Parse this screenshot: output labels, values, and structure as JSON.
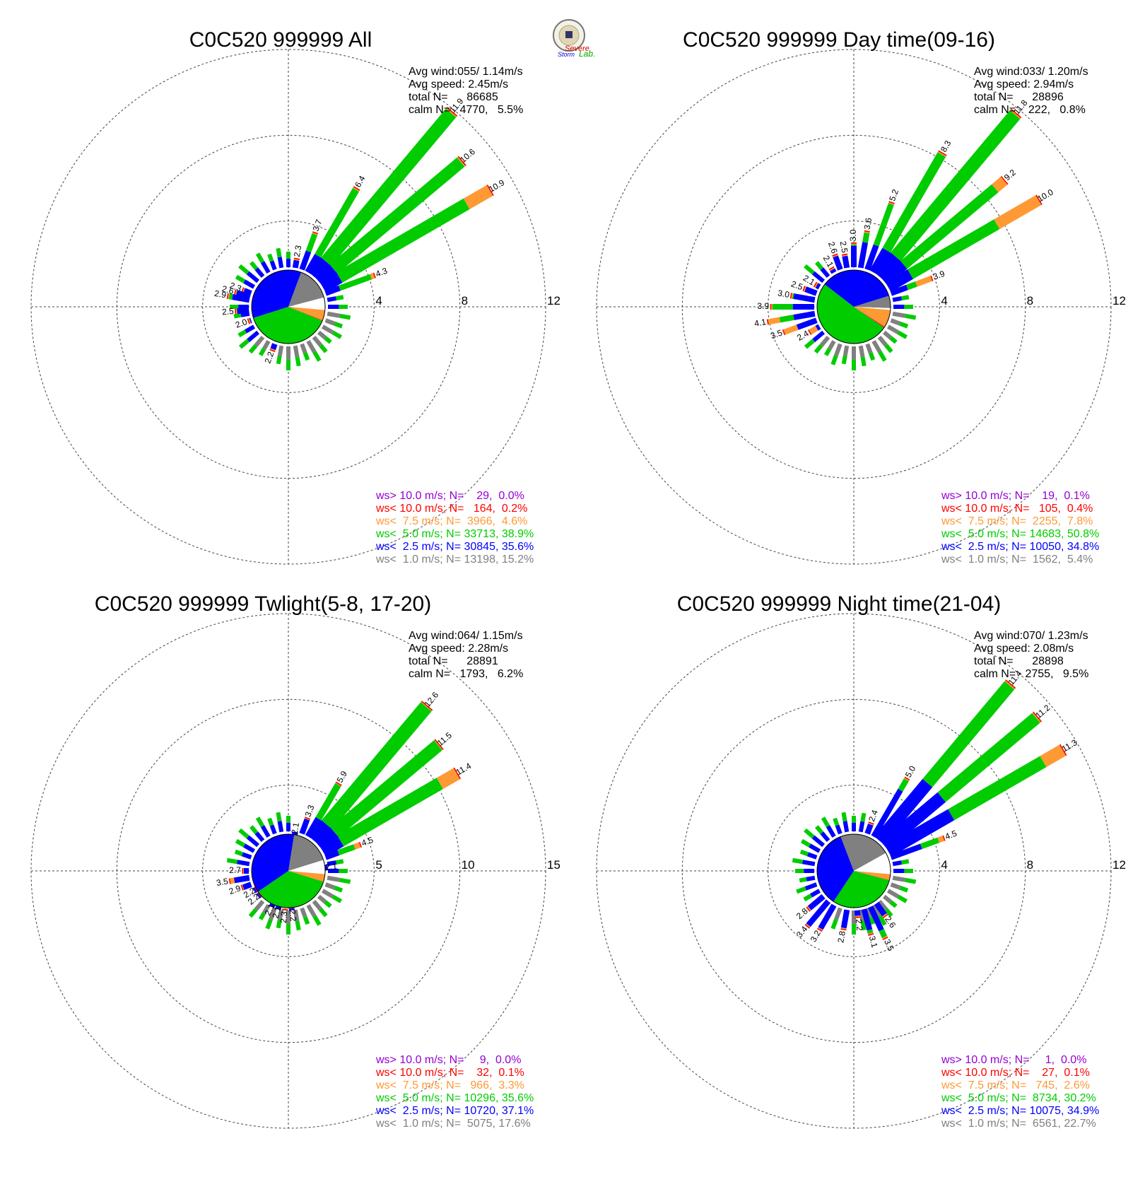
{
  "logo": {
    "text_top": "Severe",
    "text_mid": "Storm",
    "text_lab": "Lab."
  },
  "colors": {
    "gt10": "#9400D3",
    "lt10": "#FF0000",
    "lt75": "#FF9933",
    "lt5": "#00CC00",
    "lt25": "#0000FF",
    "lt1": "#808080",
    "calm": "#FFFFFF"
  },
  "chart_data": [
    {
      "type": "wind-rose",
      "title": "C0C520 999999 All",
      "info": [
        "Avg wind:055/ 1.14m/s",
        "Avg speed: 2.45m/s",
        "total N=      86685",
        "calm N=   4770,   5.5%"
      ],
      "ring_values": [
        4,
        8,
        12
      ],
      "ring_labels": [
        "4",
        "8",
        "12"
      ],
      "legend": [
        {
          "key": "gt10",
          "text": "ws> 10.0 m/s; N=    29,  0.0%"
        },
        {
          "key": "lt10",
          "text": "ws< 10.0 m/s; N=   164,  0.2%"
        },
        {
          "key": "lt75",
          "text": "ws<  7.5 m/s; N=  3966,  4.6%"
        },
        {
          "key": "lt5",
          "text": "ws<  5.0 m/s; N= 33713, 38.9%"
        },
        {
          "key": "lt25",
          "text": "ws<  2.5 m/s; N= 30845, 35.6%"
        },
        {
          "key": "lt1",
          "text": "ws<  1.0 m/s; N= 13198, 15.2%"
        }
      ],
      "pie": {
        "lt1": 15.2,
        "lt25": 35.6,
        "lt5": 38.9,
        "lt75": 4.6,
        "lt10": 0.2,
        "gt10": 0.0,
        "calm": 5.5
      },
      "bars": [
        {
          "dir": 40,
          "total": 11.9,
          "label": "11.9",
          "blue": 0.9
        },
        {
          "dir": 50,
          "total": 10.6,
          "label": "10.6",
          "blue": 0.9
        },
        {
          "dir": 60,
          "total": 10.9,
          "label": "10.9",
          "blue": 0.9,
          "orange": 1.3
        },
        {
          "dir": 30,
          "total": 6.4,
          "label": "6.4",
          "blue": 0.9
        },
        {
          "dir": 70,
          "total": 4.3,
          "label": "4.3",
          "blue": 0.7,
          "orange": 0.2
        },
        {
          "dir": 20,
          "total": 3.7,
          "label": "3.7",
          "blue": 0.9
        },
        {
          "dir": 10,
          "total": 2.3,
          "label": "2.3",
          "blue": 0.9
        },
        {
          "dir": 290,
          "total": 2.3,
          "label": "2.3",
          "blue": 0.8
        },
        {
          "dir": 285,
          "total": 2.6,
          "label": "2.6",
          "blue": 0.8
        },
        {
          "dir": 280,
          "total": 2.9,
          "label": "2.9",
          "blue": 0.8
        },
        {
          "dir": 265,
          "total": 2.5,
          "label": "2.5",
          "blue": 0.8
        },
        {
          "dir": 250,
          "total": 2.0,
          "label": "2.0",
          "blue": 0.8
        },
        {
          "dir": 200,
          "total": 2.2,
          "label": "2.2",
          "blue": 0.9
        }
      ]
    },
    {
      "type": "wind-rose",
      "title": "C0C520 999999 Day time(09-16)",
      "info": [
        "Avg wind:033/ 1.20m/s",
        "Avg speed: 2.94m/s",
        "total N=      28896",
        "calm N=    222,   0.8%"
      ],
      "ring_values": [
        4,
        8,
        12
      ],
      "ring_labels": [
        "4",
        "8",
        "12"
      ],
      "legend": [
        {
          "key": "gt10",
          "text": "ws> 10.0 m/s; N=    19,  0.1%"
        },
        {
          "key": "lt10",
          "text": "ws< 10.0 m/s; N=   105,  0.4%"
        },
        {
          "key": "lt75",
          "text": "ws<  7.5 m/s; N=  2255,  7.8%"
        },
        {
          "key": "lt5",
          "text": "ws<  5.0 m/s; N= 14683, 50.8%"
        },
        {
          "key": "lt25",
          "text": "ws<  2.5 m/s; N= 10050, 34.8%"
        },
        {
          "key": "lt1",
          "text": "ws<  1.0 m/s; N=  1562,  5.4%"
        }
      ],
      "pie": {
        "lt1": 5.4,
        "lt25": 34.8,
        "lt5": 50.8,
        "lt75": 7.8,
        "lt10": 0.4,
        "gt10": 0.1,
        "calm": 0.8
      },
      "bars": [
        {
          "dir": 40,
          "total": 11.8,
          "label": "11.8",
          "blue": 1.2
        },
        {
          "dir": 30,
          "total": 8.3,
          "label": "8.3",
          "blue": 1.2
        },
        {
          "dir": 50,
          "total": 9.2,
          "label": "9.2",
          "blue": 1.2,
          "orange": 0.6
        },
        {
          "dir": 60,
          "total": 10.0,
          "label": "10.0",
          "blue": 1.2,
          "orange": 2.3
        },
        {
          "dir": 20,
          "total": 5.2,
          "label": "5.2",
          "blue": 1.2
        },
        {
          "dir": 70,
          "total": 3.9,
          "label": "3.9",
          "blue": 0.8,
          "orange": 0.8
        },
        {
          "dir": 10,
          "total": 3.6,
          "label": "3.6",
          "blue": 1.2
        },
        {
          "dir": 0,
          "total": 3.0,
          "label": "3.0",
          "blue": 1.0
        },
        {
          "dir": 350,
          "total": 2.5,
          "label": "2.5",
          "blue": 1.0
        },
        {
          "dir": 340,
          "total": 2.6,
          "label": "2.6",
          "blue": 1.0
        },
        {
          "dir": 330,
          "total": 2.1,
          "label": "2.1",
          "blue": 1.0
        },
        {
          "dir": 300,
          "total": 2.1,
          "label": "2.1",
          "blue": 1.0
        },
        {
          "dir": 290,
          "total": 2.5,
          "label": "2.5",
          "blue": 1.0
        },
        {
          "dir": 280,
          "total": 3.0,
          "label": "3.0",
          "blue": 1.0
        },
        {
          "dir": 270,
          "total": 3.9,
          "label": "3.9",
          "blue": 1.0
        },
        {
          "dir": 260,
          "total": 4.1,
          "label": "4.1",
          "blue": 1.0,
          "orange": 0.6
        },
        {
          "dir": 250,
          "total": 3.5,
          "label": "3.5",
          "blue": 1.0,
          "orange": 0.7
        },
        {
          "dir": 240,
          "total": 2.4,
          "label": "2.4",
          "blue": 0.5,
          "orange": 0.4
        }
      ]
    },
    {
      "type": "wind-rose",
      "title": "C0C520 999999 Twlight(5-8, 17-20)",
      "info": [
        "Avg wind:064/ 1.15m/s",
        "Avg speed: 2.28m/s",
        "total N=      28891",
        "calm N=   1793,   6.2%"
      ],
      "ring_values": [
        5,
        10,
        15
      ],
      "ring_labels": [
        "5",
        "10",
        "15"
      ],
      "legend": [
        {
          "key": "gt10",
          "text": "ws> 10.0 m/s; N=     9,  0.0%"
        },
        {
          "key": "lt10",
          "text": "ws< 10.0 m/s; N=    32,  0.1%"
        },
        {
          "key": "lt75",
          "text": "ws<  7.5 m/s; N=   966,  3.3%"
        },
        {
          "key": "lt5",
          "text": "ws<  5.0 m/s; N= 10296, 35.6%"
        },
        {
          "key": "lt25",
          "text": "ws<  2.5 m/s; N= 10720, 37.1%"
        },
        {
          "key": "lt1",
          "text": "ws<  1.0 m/s; N=  5075, 17.6%"
        }
      ],
      "pie": {
        "lt1": 17.6,
        "lt25": 37.1,
        "lt5": 35.6,
        "lt75": 3.3,
        "lt10": 0.1,
        "gt10": 0.0,
        "calm": 6.2
      },
      "bars": [
        {
          "dir": 40,
          "total": 12.6,
          "label": "12.6",
          "blue": 1.2
        },
        {
          "dir": 50,
          "total": 11.5,
          "label": "11.5",
          "blue": 1.2
        },
        {
          "dir": 60,
          "total": 11.4,
          "label": "11.4",
          "blue": 1.2,
          "orange": 1.2
        },
        {
          "dir": 30,
          "total": 5.9,
          "label": "5.9",
          "blue": 1.2
        },
        {
          "dir": 20,
          "total": 3.3,
          "label": "3.3",
          "blue": 1.2
        },
        {
          "dir": 10,
          "total": 2.1,
          "label": "2.1",
          "blue": 1.1
        },
        {
          "dir": 70,
          "total": 4.5,
          "label": "4.5",
          "blue": 0.8,
          "orange": 0.4
        },
        {
          "dir": 85,
          "total": 2.1,
          "label": "2.1",
          "blue": 0.8
        },
        {
          "dir": 240,
          "total": 2.2,
          "label": "2.2",
          "blue": 1.0
        },
        {
          "dir": 250,
          "total": 2.9,
          "label": "2.9",
          "blue": 1.0
        },
        {
          "dir": 260,
          "total": 3.5,
          "label": "3.5",
          "blue": 1.0,
          "orange": 0.3
        },
        {
          "dir": 270,
          "total": 2.7,
          "label": "2.7",
          "blue": 1.0
        },
        {
          "dir": 230,
          "total": 2.2,
          "label": "2.2",
          "blue": 1.0
        },
        {
          "dir": 205,
          "total": 2.1,
          "label": "2.1",
          "blue": 1.0
        },
        {
          "dir": 195,
          "total": 2.1,
          "label": "2.1",
          "blue": 1.0
        },
        {
          "dir": 185,
          "total": 2.3,
          "label": "2.3",
          "blue": 1.0
        },
        {
          "dir": 175,
          "total": 2.2,
          "label": "2.2",
          "blue": 1.0
        }
      ]
    },
    {
      "type": "wind-rose",
      "title": "C0C520 999999 Night time(21-04)",
      "info": [
        "Avg wind:070/ 1.23m/s",
        "Avg speed: 2.08m/s",
        "total N=      28898",
        "calm N=   2755,   9.5%"
      ],
      "ring_values": [
        4,
        8,
        12
      ],
      "ring_labels": [
        "4",
        "8",
        "12"
      ],
      "legend": [
        {
          "key": "gt10",
          "text": "ws> 10.0 m/s; N=     1,  0.0%"
        },
        {
          "key": "lt10",
          "text": "ws< 10.0 m/s; N=    27,  0.1%"
        },
        {
          "key": "lt75",
          "text": "ws<  7.5 m/s; N=   745,  2.6%"
        },
        {
          "key": "lt5",
          "text": "ws<  5.0 m/s; N=  8734, 30.2%"
        },
        {
          "key": "lt25",
          "text": "ws<  2.5 m/s; N= 10075, 34.9%"
        },
        {
          "key": "lt1",
          "text": "ws<  1.0 m/s; N=  6561, 22.7%"
        }
      ],
      "pie": {
        "lt1": 22.7,
        "lt25": 34.9,
        "lt5": 30.2,
        "lt75": 2.6,
        "lt10": 0.1,
        "gt10": 0.0,
        "calm": 9.5
      },
      "bars": [
        {
          "dir": 40,
          "total": 11.4,
          "label": "11.4",
          "blue": 3.5
        },
        {
          "dir": 50,
          "total": 11.2,
          "label": "11.2",
          "blue": 3.5
        },
        {
          "dir": 60,
          "total": 11.3,
          "label": "11.3",
          "blue": 3.4,
          "orange": 1.1
        },
        {
          "dir": 30,
          "total": 5.0,
          "label": "5.0",
          "blue": 2.5
        },
        {
          "dir": 20,
          "total": 2.4,
          "label": "2.4",
          "blue": 1.9
        },
        {
          "dir": 70,
          "total": 4.5,
          "label": "4.5",
          "blue": 1.5,
          "orange": 0.3
        },
        {
          "dir": 145,
          "total": 2.6,
          "label": "2.6",
          "blue": 0.8,
          "green": 0.0
        },
        {
          "dir": 155,
          "total": 3.5,
          "label": "3.5",
          "blue": 1.2,
          "green": 0.0
        },
        {
          "dir": 165,
          "total": 3.1,
          "label": "3.1",
          "blue": 1.0,
          "green": 0.0
        },
        {
          "dir": 175,
          "total": 2.2,
          "label": "2.2",
          "blue": 0.6,
          "green": 0.0
        },
        {
          "dir": 190,
          "total": 2.8,
          "label": "2.8",
          "blue": 1.3,
          "green": 0.0
        },
        {
          "dir": 210,
          "total": 3.2,
          "label": "3.2",
          "blue": 1.5
        },
        {
          "dir": 220,
          "total": 3.4,
          "label": "3.4",
          "blue": 1.5
        },
        {
          "dir": 230,
          "total": 2.8,
          "label": "2.8",
          "blue": 1.5
        }
      ]
    }
  ]
}
